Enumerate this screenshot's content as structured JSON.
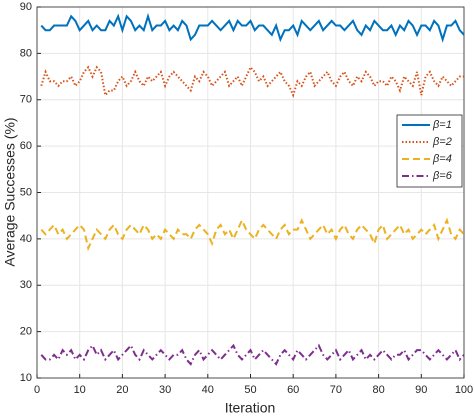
{
  "chart_data": {
    "type": "line",
    "x_label": "Iteration",
    "y_label": "Average Successes (%)",
    "x": [
      1,
      2,
      3,
      4,
      5,
      6,
      7,
      8,
      9,
      10,
      11,
      12,
      13,
      14,
      15,
      16,
      17,
      18,
      19,
      20,
      21,
      22,
      23,
      24,
      25,
      26,
      27,
      28,
      29,
      30,
      31,
      32,
      33,
      34,
      35,
      36,
      37,
      38,
      39,
      40,
      41,
      42,
      43,
      44,
      45,
      46,
      47,
      48,
      49,
      50,
      51,
      52,
      53,
      54,
      55,
      56,
      57,
      58,
      59,
      60,
      61,
      62,
      63,
      64,
      65,
      66,
      67,
      68,
      69,
      70,
      71,
      72,
      73,
      74,
      75,
      76,
      77,
      78,
      79,
      80,
      81,
      82,
      83,
      84,
      85,
      86,
      87,
      88,
      89,
      90,
      91,
      92,
      93,
      94,
      95,
      96,
      97,
      98,
      99,
      100
    ],
    "series": [
      {
        "name": "β=1",
        "color": "#0072bd",
        "style": "solid",
        "values": [
          86,
          85,
          85,
          86,
          86,
          86,
          86,
          88,
          87,
          85,
          86,
          87,
          85,
          86,
          85,
          85,
          87,
          86,
          88,
          85,
          88,
          87,
          85,
          86,
          85,
          88,
          85,
          86,
          86,
          87,
          85,
          86,
          85,
          87,
          86,
          83,
          84,
          86,
          86,
          86,
          87,
          86,
          85,
          86,
          87,
          85,
          87,
          86,
          86,
          87,
          85,
          86,
          86,
          85,
          84,
          86,
          83,
          85,
          85,
          86,
          84,
          87,
          86,
          85,
          86,
          87,
          85,
          86,
          87,
          86,
          86,
          85,
          86,
          87,
          85,
          84,
          86,
          85,
          87,
          86,
          85,
          85,
          86,
          84,
          86,
          85,
          87,
          86,
          84,
          86,
          86,
          85,
          87,
          86,
          83,
          86,
          86,
          87,
          85,
          84
        ]
      },
      {
        "name": "β=2",
        "color": "#d95319",
        "style": "dotted",
        "values": [
          73,
          76,
          74,
          74,
          73,
          74,
          74,
          75,
          73,
          74,
          76,
          77,
          75,
          77,
          76,
          71,
          72,
          72,
          74,
          75,
          73,
          74,
          76,
          74,
          73,
          75,
          74,
          75,
          76,
          73,
          75,
          76,
          75,
          74,
          73,
          72,
          75,
          74,
          76,
          75,
          73,
          74,
          75,
          76,
          73,
          74,
          75,
          73,
          75,
          77,
          76,
          74,
          75,
          73,
          74,
          75,
          76,
          74,
          73,
          71,
          74,
          73,
          75,
          76,
          73,
          74,
          75,
          76,
          74,
          73,
          75,
          76,
          74,
          73,
          75,
          74,
          76,
          75,
          73,
          74,
          74,
          73,
          75,
          74,
          72,
          75,
          74,
          73,
          76,
          71,
          75,
          76,
          74,
          73,
          75,
          74,
          73,
          74,
          75,
          75
        ]
      },
      {
        "name": "β=4",
        "color": "#edb120",
        "style": "dashed",
        "values": [
          42,
          41,
          42,
          43,
          41,
          42,
          40,
          41,
          42,
          43,
          42,
          38,
          40,
          42,
          41,
          40,
          42,
          43,
          41,
          40,
          42,
          43,
          42,
          41,
          43,
          42,
          40,
          41,
          40,
          42,
          41,
          40,
          42,
          41,
          41,
          40,
          42,
          43,
          42,
          41,
          39,
          42,
          43,
          41,
          42,
          40,
          42,
          44,
          42,
          41,
          40,
          42,
          43,
          42,
          41,
          40,
          42,
          43,
          41,
          42,
          42,
          44,
          42,
          40,
          41,
          42,
          43,
          41,
          42,
          40,
          42,
          43,
          41,
          40,
          42,
          43,
          42,
          41,
          39,
          42,
          43,
          40,
          41,
          42,
          43,
          41,
          42,
          40,
          41,
          42,
          41,
          42,
          43,
          40,
          42,
          44,
          41,
          40,
          42,
          41
        ]
      },
      {
        "name": "β=6",
        "color": "#7e2f8e",
        "style": "dashdot",
        "values": [
          15,
          14,
          14,
          15,
          14,
          16,
          15,
          16,
          14,
          15,
          14,
          16,
          17,
          15,
          16,
          14,
          15,
          16,
          14,
          15,
          16,
          17,
          15,
          14,
          16,
          15,
          14,
          15,
          16,
          15,
          14,
          15,
          15,
          16,
          14,
          13,
          15,
          16,
          14,
          15,
          16,
          15,
          14,
          15,
          16,
          17,
          15,
          14,
          15,
          16,
          14,
          15,
          16,
          15,
          14,
          13,
          15,
          16,
          15,
          14,
          16,
          15,
          14,
          15,
          16,
          17,
          15,
          14,
          15,
          16,
          14,
          15,
          16,
          14,
          15,
          16,
          14,
          15,
          14,
          15,
          16,
          15,
          14,
          15,
          15,
          16,
          14,
          15,
          16,
          16,
          15,
          14,
          15,
          16,
          15,
          14,
          15,
          16,
          14,
          15
        ]
      }
    ],
    "xlim": [
      0,
      100
    ],
    "xticks": [
      0,
      10,
      20,
      30,
      40,
      50,
      60,
      70,
      80,
      90,
      100
    ],
    "ylim": [
      10,
      90
    ],
    "yticks": [
      10,
      20,
      30,
      40,
      50,
      60,
      70,
      80,
      90
    ],
    "grid": true,
    "legend": "right"
  }
}
